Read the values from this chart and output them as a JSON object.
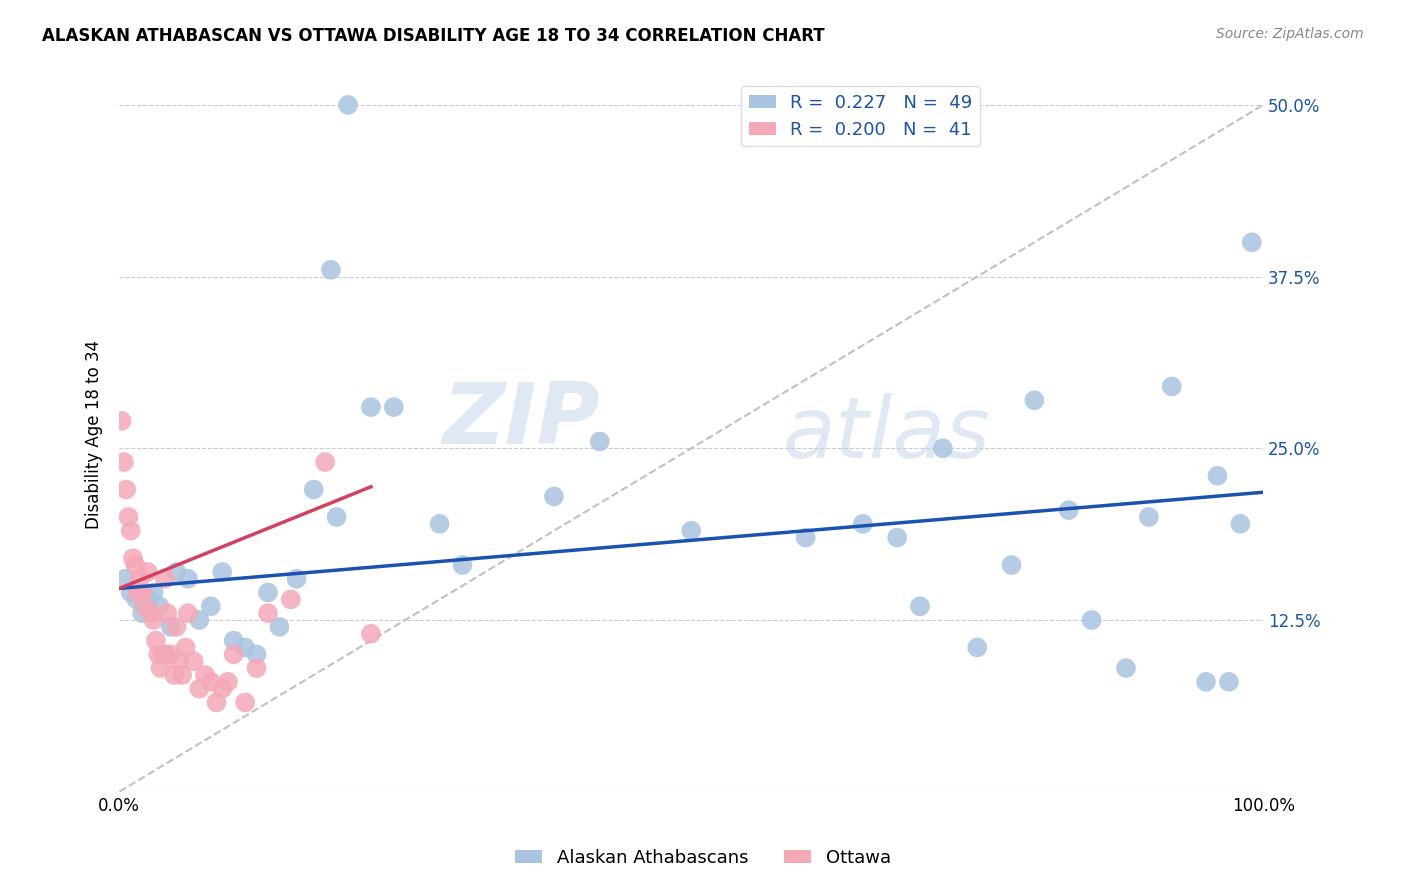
{
  "title": "ALASKAN ATHABASCAN VS OTTAWA DISABILITY AGE 18 TO 34 CORRELATION CHART",
  "source": "Source: ZipAtlas.com",
  "ylabel": "Disability Age 18 to 34",
  "xlim": [
    0,
    1.0
  ],
  "ylim": [
    0.0,
    0.52
  ],
  "x_ticks": [
    0.0,
    0.2,
    0.4,
    0.6,
    0.8,
    1.0
  ],
  "x_tick_labels": [
    "0.0%",
    "",
    "",
    "",
    "",
    "100.0%"
  ],
  "y_ticks": [
    0.0,
    0.125,
    0.25,
    0.375,
    0.5
  ],
  "y_tick_labels": [
    "",
    "12.5%",
    "25.0%",
    "37.5%",
    "50.0%"
  ],
  "blue_R": "0.227",
  "blue_N": "49",
  "pink_R": "0.200",
  "pink_N": "41",
  "blue_color": "#a8c4e0",
  "pink_color": "#f4a8b8",
  "blue_line_color": "#1a52b0",
  "pink_line_color": "#d44060",
  "dashed_line_color": "#bbbbbb",
  "watermark_zip": "ZIP",
  "watermark_atlas": "atlas",
  "legend_label_blue": "Alaskan Athabascans",
  "legend_label_pink": "Ottawa",
  "blue_scatter_x": [
    0.2,
    0.185,
    0.22,
    0.24,
    0.005,
    0.01,
    0.015,
    0.02,
    0.025,
    0.03,
    0.035,
    0.04,
    0.045,
    0.05,
    0.06,
    0.07,
    0.08,
    0.09,
    0.1,
    0.11,
    0.12,
    0.13,
    0.14,
    0.155,
    0.17,
    0.19,
    0.28,
    0.3,
    0.38,
    0.42,
    0.5,
    0.6,
    0.65,
    0.68,
    0.7,
    0.72,
    0.75,
    0.78,
    0.8,
    0.83,
    0.85,
    0.88,
    0.9,
    0.92,
    0.95,
    0.96,
    0.97,
    0.98,
    0.99
  ],
  "blue_scatter_y": [
    0.5,
    0.38,
    0.28,
    0.28,
    0.155,
    0.145,
    0.14,
    0.13,
    0.14,
    0.145,
    0.135,
    0.1,
    0.12,
    0.16,
    0.155,
    0.125,
    0.135,
    0.16,
    0.11,
    0.105,
    0.1,
    0.145,
    0.12,
    0.155,
    0.22,
    0.2,
    0.195,
    0.165,
    0.215,
    0.255,
    0.19,
    0.185,
    0.195,
    0.185,
    0.135,
    0.25,
    0.105,
    0.165,
    0.285,
    0.205,
    0.125,
    0.09,
    0.2,
    0.295,
    0.08,
    0.23,
    0.08,
    0.195,
    0.4
  ],
  "pink_scatter_x": [
    0.002,
    0.004,
    0.006,
    0.008,
    0.01,
    0.012,
    0.014,
    0.016,
    0.018,
    0.02,
    0.022,
    0.025,
    0.028,
    0.03,
    0.032,
    0.034,
    0.036,
    0.038,
    0.04,
    0.042,
    0.045,
    0.048,
    0.05,
    0.052,
    0.055,
    0.058,
    0.06,
    0.065,
    0.07,
    0.075,
    0.08,
    0.085,
    0.09,
    0.095,
    0.1,
    0.11,
    0.12,
    0.13,
    0.15,
    0.18,
    0.22
  ],
  "pink_scatter_y": [
    0.27,
    0.24,
    0.22,
    0.2,
    0.19,
    0.17,
    0.165,
    0.145,
    0.155,
    0.145,
    0.135,
    0.16,
    0.13,
    0.125,
    0.11,
    0.1,
    0.09,
    0.1,
    0.155,
    0.13,
    0.1,
    0.085,
    0.12,
    0.095,
    0.085,
    0.105,
    0.13,
    0.095,
    0.075,
    0.085,
    0.08,
    0.065,
    0.075,
    0.08,
    0.1,
    0.065,
    0.09,
    0.13,
    0.14,
    0.24,
    0.115
  ],
  "blue_trend_x": [
    0.0,
    1.0
  ],
  "blue_trend_y": [
    0.148,
    0.218
  ],
  "pink_trend_x": [
    0.0,
    0.22
  ],
  "pink_trend_y": [
    0.148,
    0.222
  ],
  "diag_line_x": [
    0.0,
    1.0
  ],
  "diag_line_y": [
    0.0,
    0.5
  ]
}
